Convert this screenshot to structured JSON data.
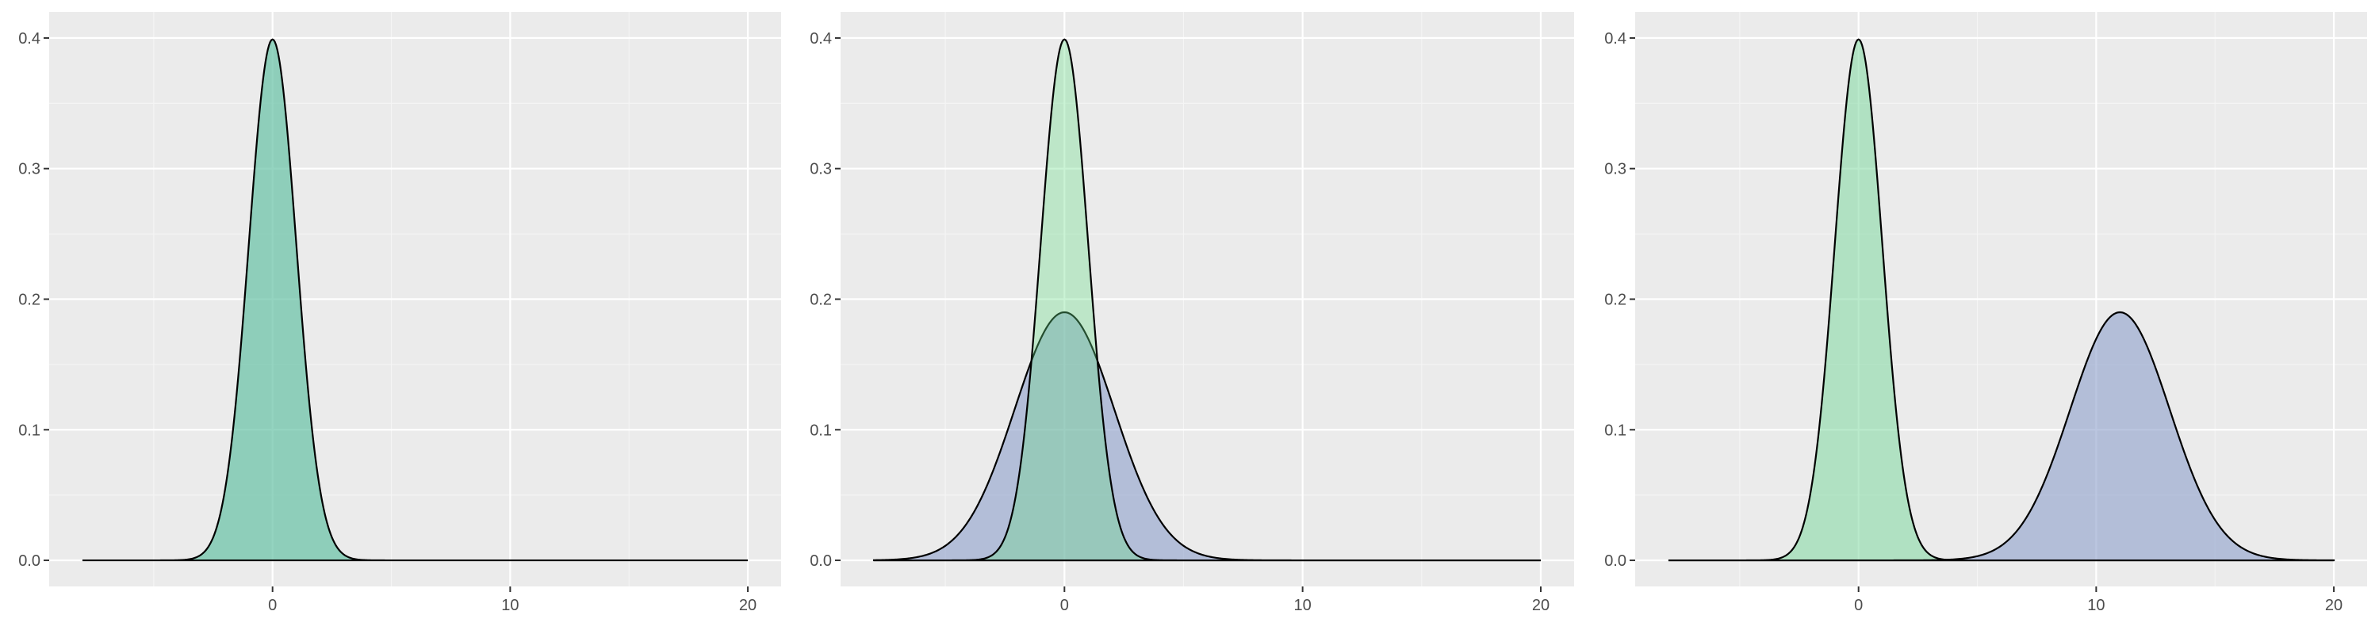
{
  "chart_data": [
    {
      "type": "area",
      "panel": "left",
      "x_ticks": [
        "0",
        "10",
        "20"
      ],
      "y_ticks": [
        "0.0",
        "0.1",
        "0.2",
        "0.3",
        "0.4"
      ],
      "xlim": [
        -8,
        20
      ],
      "ylim": [
        0,
        0.4
      ],
      "grid": true,
      "series": [
        {
          "distribution": "normal",
          "mean": 0,
          "sd": 1,
          "x_range": [
            -8,
            20
          ],
          "fill": "#66c2a5",
          "opacity": 0.7
        }
      ]
    },
    {
      "type": "area",
      "panel": "middle",
      "x_ticks": [
        "0",
        "10",
        "20"
      ],
      "y_ticks": [
        "0.0",
        "0.1",
        "0.2",
        "0.3",
        "0.4"
      ],
      "xlim": [
        -8,
        20
      ],
      "ylim": [
        0,
        0.4
      ],
      "grid": true,
      "series": [
        {
          "distribution": "normal",
          "mean": 0,
          "sd": 2.1,
          "x_range": [
            -8,
            20
          ],
          "fill": "#8da0cb",
          "opacity": 0.6
        },
        {
          "distribution": "normal",
          "mean": 0,
          "sd": 1,
          "x_range": [
            -8,
            20
          ],
          "fill": "#66dd88",
          "opacity": 0.35
        }
      ]
    },
    {
      "type": "area",
      "panel": "right",
      "x_ticks": [
        "0",
        "10",
        "20"
      ],
      "y_ticks": [
        "0.0",
        "0.1",
        "0.2",
        "0.3",
        "0.4"
      ],
      "xlim": [
        -8,
        20
      ],
      "ylim": [
        0,
        0.4
      ],
      "grid": true,
      "series": [
        {
          "distribution": "normal",
          "mean": 0,
          "sd": 1,
          "x_range": [
            -8,
            20
          ],
          "fill": "#7fd9a0",
          "opacity": 0.55
        },
        {
          "distribution": "normal",
          "mean": 11,
          "sd": 2.1,
          "x_range": [
            -8,
            20
          ],
          "fill": "#8da0cb",
          "opacity": 0.6
        }
      ]
    }
  ]
}
